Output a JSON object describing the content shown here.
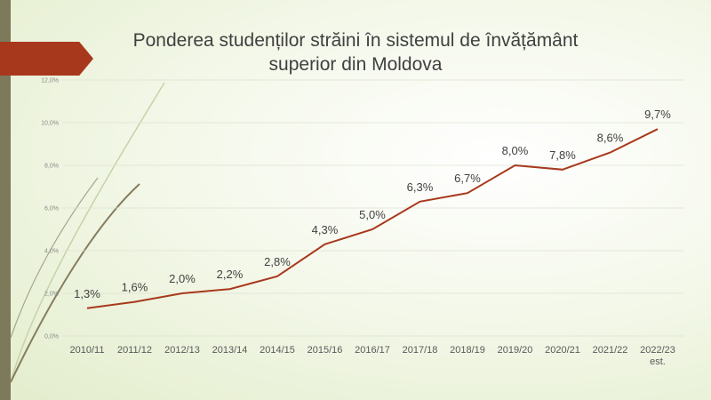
{
  "chart_data": {
    "type": "line",
    "title": "Ponderea studenților străini în sistemul de învățământ superior din Moldova",
    "categories": [
      "2010/11",
      "2011/12",
      "2012/13",
      "2013/14",
      "2014/15",
      "2015/16",
      "2016/17",
      "2017/18",
      "2018/19",
      "2019/20",
      "2020/21",
      "2021/22",
      "2022/23 est."
    ],
    "values": [
      1.3,
      1.6,
      2.0,
      2.2,
      2.8,
      4.3,
      5.0,
      6.3,
      6.7,
      8.0,
      7.8,
      8.6,
      9.7
    ],
    "data_labels": [
      "1,3%",
      "1,6%",
      "2,0%",
      "2,2%",
      "2,8%",
      "4,3%",
      "5,0%",
      "6,3%",
      "6,7%",
      "8,0%",
      "7,8%",
      "8,6%",
      "9,7%"
    ],
    "y_ticks": [
      "0,0%",
      "2,0%",
      "4,0%",
      "6,0%",
      "8,0%",
      "10,0%",
      "12,0%"
    ],
    "ylim": [
      0,
      12
    ],
    "grid": true,
    "legend": "none",
    "xlabel": "",
    "ylabel": "",
    "colors": {
      "line": "#a8381c",
      "accent_arrow": "#a8381c",
      "left_bar": "#7d7a5c"
    }
  }
}
